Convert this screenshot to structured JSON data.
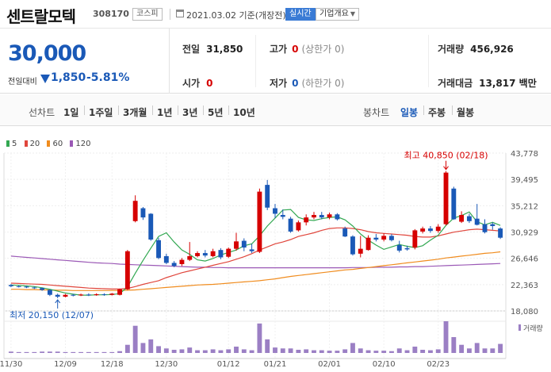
{
  "header": {
    "name": "센트랄모텍",
    "code": "308170",
    "market_badge": "코스피",
    "date_text": "2021.03.02 기준(개장전)",
    "realtime_label": "실시간",
    "company_info_label": "기업개요"
  },
  "quote": {
    "price": "30,000",
    "change_label": "전일대비",
    "change_value": "1,850",
    "change_pct": "-5.81%",
    "prev_label": "전일",
    "prev_value": "31,850",
    "high_label": "고가",
    "high_value": "0",
    "high_sub": "(상한가 0)",
    "volume_label": "거래량",
    "volume_value": "456,926",
    "open_label": "시가",
    "open_value": "0",
    "low_label": "저가",
    "low_value": "0",
    "low_sub": "(하한가 0)",
    "amount_label": "거래대금",
    "amount_value": "13,817 백만"
  },
  "chart_menu": {
    "line_label": "선차트",
    "line_periods": [
      "1일",
      "1주일",
      "3개월",
      "1년",
      "3년",
      "5년",
      "10년"
    ],
    "candle_label": "봉차트",
    "candle_periods": [
      "일봉",
      "주봉",
      "월봉"
    ],
    "active_candle": "일봉"
  },
  "colors": {
    "up": "#d60000",
    "down": "#1a59b7",
    "ma5": "#33a852",
    "ma20": "#e0463c",
    "ma60": "#f08c1e",
    "ma120": "#9b59b6",
    "volume": "#9b7fc4"
  },
  "chart_data": {
    "type": "candlestick",
    "y_ticks": [
      "43,778",
      "39,495",
      "35,212",
      "30,929",
      "26,646",
      "22,363",
      "18,080"
    ],
    "ylim": [
      18080,
      43778
    ],
    "x_labels": [
      "11/30",
      "12/09",
      "12/18",
      "12/30",
      "01/12",
      "01/21",
      "02/01",
      "02/10",
      "02/23"
    ],
    "legend": [
      {
        "name": "5",
        "color": "#33a852"
      },
      {
        "name": "20",
        "color": "#e0463c"
      },
      {
        "name": "60",
        "color": "#f08c1e"
      },
      {
        "name": "120",
        "color": "#9b59b6"
      }
    ],
    "volume_label": "거래량",
    "high_annotation": "최고 40,850 (02/18)",
    "low_annotation": "최저 20,150 (12/07)",
    "candles": [
      {
        "o": 22300,
        "c": 22100,
        "h": 22450,
        "l": 21950
      },
      {
        "o": 22100,
        "c": 22050,
        "h": 22250,
        "l": 21900
      },
      {
        "o": 22050,
        "c": 21900,
        "h": 22150,
        "l": 21800
      },
      {
        "o": 21900,
        "c": 21800,
        "h": 22050,
        "l": 21650
      },
      {
        "o": 21800,
        "c": 21500,
        "h": 21900,
        "l": 21350
      },
      {
        "o": 21500,
        "c": 20700,
        "h": 21550,
        "l": 20500
      },
      {
        "o": 20700,
        "c": 20400,
        "h": 20900,
        "l": 20150
      },
      {
        "o": 20400,
        "c": 20700,
        "h": 20850,
        "l": 20300
      },
      {
        "o": 20700,
        "c": 20600,
        "h": 20850,
        "l": 20450
      },
      {
        "o": 20600,
        "c": 20750,
        "h": 20900,
        "l": 20500
      },
      {
        "o": 20750,
        "c": 20650,
        "h": 20950,
        "l": 20500
      },
      {
        "o": 20650,
        "c": 20800,
        "h": 20950,
        "l": 20550
      },
      {
        "o": 20800,
        "c": 20700,
        "h": 20950,
        "l": 20550
      },
      {
        "o": 20700,
        "c": 20900,
        "h": 21000,
        "l": 20600
      },
      {
        "o": 20700,
        "c": 21600,
        "h": 21700,
        "l": 20600
      },
      {
        "o": 21600,
        "c": 27800,
        "h": 28000,
        "l": 21500
      },
      {
        "o": 32700,
        "c": 36000,
        "h": 36900,
        "l": 32500
      },
      {
        "o": 34800,
        "c": 33300,
        "h": 35000,
        "l": 32900
      },
      {
        "o": 33900,
        "c": 29700,
        "h": 34000,
        "l": 29500
      },
      {
        "o": 29600,
        "c": 26700,
        "h": 30000,
        "l": 26500
      },
      {
        "o": 27000,
        "c": 25900,
        "h": 27400,
        "l": 25700
      },
      {
        "o": 25900,
        "c": 25400,
        "h": 26200,
        "l": 25200
      },
      {
        "o": 25700,
        "c": 26400,
        "h": 26700,
        "l": 25400
      },
      {
        "o": 26400,
        "c": 27000,
        "h": 29300,
        "l": 26200
      },
      {
        "o": 27000,
        "c": 27500,
        "h": 27800,
        "l": 26800
      },
      {
        "o": 27500,
        "c": 27100,
        "h": 28000,
        "l": 26800
      },
      {
        "o": 27000,
        "c": 27800,
        "h": 28200,
        "l": 26800
      },
      {
        "o": 28000,
        "c": 26800,
        "h": 28300,
        "l": 26500
      },
      {
        "o": 26900,
        "c": 28200,
        "h": 28400,
        "l": 26700
      },
      {
        "o": 28200,
        "c": 29400,
        "h": 30800,
        "l": 27900
      },
      {
        "o": 29500,
        "c": 28400,
        "h": 29900,
        "l": 27800
      },
      {
        "o": 28100,
        "c": 27800,
        "h": 29000,
        "l": 27500
      },
      {
        "o": 27700,
        "c": 37500,
        "h": 38000,
        "l": 27500
      },
      {
        "o": 38600,
        "c": 34900,
        "h": 39400,
        "l": 34500
      },
      {
        "o": 34800,
        "c": 33900,
        "h": 35500,
        "l": 33200
      },
      {
        "o": 33700,
        "c": 33400,
        "h": 34600,
        "l": 33000
      },
      {
        "o": 33100,
        "c": 31000,
        "h": 33400,
        "l": 30800
      },
      {
        "o": 31200,
        "c": 32500,
        "h": 32800,
        "l": 31000
      },
      {
        "o": 32500,
        "c": 33300,
        "h": 33800,
        "l": 32000
      },
      {
        "o": 33300,
        "c": 33700,
        "h": 34200,
        "l": 33000
      },
      {
        "o": 33700,
        "c": 33300,
        "h": 34200,
        "l": 33000
      },
      {
        "o": 33300,
        "c": 33800,
        "h": 34100,
        "l": 33000
      },
      {
        "o": 33800,
        "c": 33000,
        "h": 34000,
        "l": 32800
      },
      {
        "o": 31500,
        "c": 30200,
        "h": 31800,
        "l": 30100
      },
      {
        "o": 30200,
        "c": 27300,
        "h": 30400,
        "l": 27100
      },
      {
        "o": 27400,
        "c": 28200,
        "h": 30300,
        "l": 26800
      },
      {
        "o": 28000,
        "c": 30000,
        "h": 30400,
        "l": 27900
      },
      {
        "o": 30000,
        "c": 29700,
        "h": 30600,
        "l": 29400
      },
      {
        "o": 29700,
        "c": 30300,
        "h": 30700,
        "l": 29400
      },
      {
        "o": 30300,
        "c": 29600,
        "h": 30600,
        "l": 29400
      },
      {
        "o": 28800,
        "c": 27900,
        "h": 29500,
        "l": 27600
      },
      {
        "o": 28300,
        "c": 28100,
        "h": 28700,
        "l": 27900
      },
      {
        "o": 28400,
        "c": 31200,
        "h": 31400,
        "l": 28100
      },
      {
        "o": 31000,
        "c": 31500,
        "h": 31800,
        "l": 30700
      },
      {
        "o": 31500,
        "c": 31100,
        "h": 31900,
        "l": 30800
      },
      {
        "o": 31100,
        "c": 31800,
        "h": 32200,
        "l": 30800
      },
      {
        "o": 32200,
        "c": 40600,
        "h": 40850,
        "l": 32000
      },
      {
        "o": 38000,
        "c": 33000,
        "h": 38300,
        "l": 32900
      },
      {
        "o": 32600,
        "c": 33700,
        "h": 34300,
        "l": 32400
      },
      {
        "o": 33500,
        "c": 32700,
        "h": 33900,
        "l": 32400
      },
      {
        "o": 33100,
        "c": 32100,
        "h": 35500,
        "l": 32000
      },
      {
        "o": 32200,
        "c": 30900,
        "h": 33000,
        "l": 30700
      },
      {
        "o": 32200,
        "c": 31900,
        "h": 32500,
        "l": 31300
      },
      {
        "o": 31500,
        "c": 30000,
        "h": 31700,
        "l": 29800
      }
    ],
    "volumes": [
      3,
      2,
      2,
      2,
      3,
      3,
      3,
      2,
      2,
      2,
      2,
      2,
      2,
      2,
      4,
      18,
      60,
      22,
      30,
      15,
      10,
      7,
      8,
      12,
      6,
      6,
      8,
      6,
      8,
      14,
      8,
      6,
      65,
      30,
      12,
      10,
      10,
      7,
      8,
      6,
      6,
      5,
      5,
      8,
      22,
      10,
      6,
      5,
      5,
      4,
      10,
      6,
      14,
      7,
      6,
      8,
      70,
      35,
      18,
      10,
      22,
      10,
      10,
      20
    ],
    "ma5": [
      22300,
      22250,
      22150,
      22050,
      21850,
      21600,
      21300,
      21000,
      20800,
      20650,
      20650,
      20700,
      20700,
      20750,
      20900,
      22000,
      24200,
      26300,
      28300,
      30200,
      30800,
      29300,
      28000,
      27300,
      26400,
      26200,
      26600,
      27200,
      27600,
      28000,
      28700,
      29000,
      30300,
      31900,
      33200,
      34500,
      34600,
      33300,
      32900,
      32800,
      33100,
      33300,
      33400,
      32900,
      31900,
      30600,
      29600,
      28800,
      28100,
      28500,
      28900,
      28600,
      28400,
      28700,
      29600,
      30400,
      32000,
      33200,
      33600,
      34200,
      32600,
      32100,
      32500,
      32000
    ],
    "ma20": [
      22600,
      22550,
      22500,
      22450,
      22400,
      22300,
      22200,
      22100,
      22000,
      21900,
      21800,
      21750,
      21700,
      21650,
      21650,
      21750,
      22050,
      22400,
      22700,
      23000,
      23500,
      23900,
      24300,
      24600,
      24900,
      25200,
      25500,
      25800,
      26100,
      26500,
      26900,
      27400,
      28000,
      28500,
      29000,
      29300,
      29700,
      30200,
      30500,
      30800,
      31200,
      31500,
      31600,
      31600,
      31500,
      31300,
      31000,
      30800,
      30700,
      30600,
      30500,
      30400,
      30200,
      30100,
      30100,
      30300,
      30600,
      30900,
      31100,
      31300,
      31400,
      31300,
      31200,
      31100
    ],
    "ma60": [
      21600,
      21600,
      21550,
      21550,
      21500,
      21500,
      21450,
      21450,
      21400,
      21400,
      21400,
      21400,
      21400,
      21400,
      21400,
      21450,
      21500,
      21600,
      21700,
      21800,
      21900,
      22000,
      22100,
      22200,
      22300,
      22350,
      22400,
      22500,
      22600,
      22700,
      22800,
      22900,
      23000,
      23150,
      23300,
      23500,
      23700,
      23850,
      24000,
      24150,
      24300,
      24450,
      24600,
      24750,
      24850,
      25000,
      25150,
      25300,
      25450,
      25600,
      25750,
      25900,
      26050,
      26200,
      26350,
      26500,
      26700,
      26850,
      27000,
      27150,
      27300,
      27450,
      27550,
      27700
    ],
    "ma120": [
      27000,
      26900,
      26800,
      26700,
      26600,
      26500,
      26400,
      26300,
      26200,
      26100,
      26000,
      25900,
      25850,
      25800,
      25700,
      25650,
      25600,
      25550,
      25500,
      25450,
      25400,
      25350,
      25300,
      25250,
      25200,
      25200,
      25150,
      25150,
      25100,
      25100,
      25100,
      25100,
      25100,
      25100,
      25100,
      25100,
      25100,
      25100,
      25100,
      25100,
      25100,
      25100,
      25100,
      25100,
      25150,
      25150,
      25150,
      25200,
      25200,
      25200,
      25250,
      25250,
      25300,
      25300,
      25350,
      25400,
      25450,
      25500,
      25550,
      25600,
      25650,
      25700,
      25750,
      25800
    ]
  }
}
